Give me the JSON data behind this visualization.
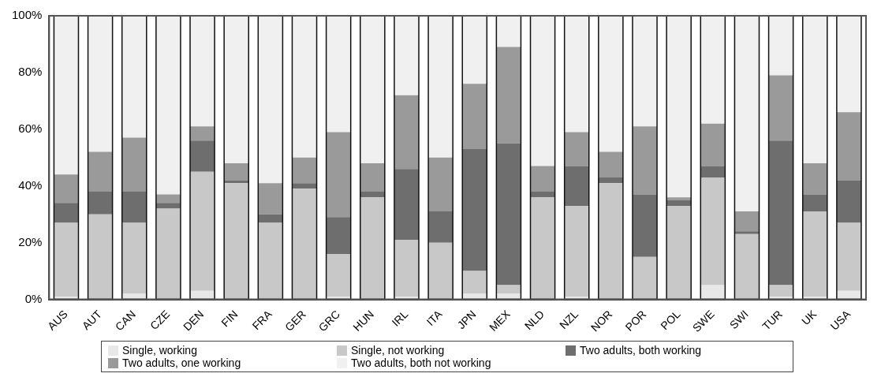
{
  "chart_data": {
    "type": "bar",
    "stacked": true,
    "categories": [
      "AUS",
      "AUT",
      "CAN",
      "CZE",
      "DEN",
      "FIN",
      "FRA",
      "GER",
      "GRC",
      "HUN",
      "IRL",
      "ITA",
      "JPN",
      "MEX",
      "NLD",
      "NZL",
      "NOR",
      "POR",
      "POL",
      "SWE",
      "SWI",
      "TUR",
      "UK",
      "USA"
    ],
    "series": [
      {
        "name": "Single, working",
        "color": "#e8e8e8",
        "values": [
          1,
          0,
          2,
          0,
          3,
          0,
          0,
          0,
          1,
          0,
          1,
          0,
          2,
          2,
          0,
          1,
          0,
          0,
          0,
          5,
          0,
          1,
          1,
          3
        ]
      },
      {
        "name": "Single, not working",
        "color": "#c8c8c8",
        "values": [
          26,
          30,
          25,
          32,
          42,
          41,
          27,
          39,
          15,
          36,
          20,
          20,
          8,
          3,
          36,
          32,
          41,
          15,
          33,
          38,
          23,
          4,
          30,
          24
        ]
      },
      {
        "name": "Two adults, both working",
        "color": "#6e6e6e",
        "values": [
          7,
          8,
          11,
          2,
          11,
          1,
          3,
          2,
          13,
          2,
          25,
          11,
          43,
          50,
          2,
          14,
          2,
          22,
          2,
          4,
          1,
          51,
          6,
          15
        ]
      },
      {
        "name": "Two adults, one working",
        "color": "#9a9a9a",
        "values": [
          10,
          14,
          19,
          3,
          5,
          6,
          11,
          9,
          30,
          10,
          26,
          19,
          23,
          34,
          9,
          12,
          9,
          24,
          1,
          15,
          7,
          23,
          11,
          24
        ]
      },
      {
        "name": "Two adults, both not working",
        "color": "#f0f0f0",
        "values": [
          56,
          48,
          43,
          63,
          39,
          52,
          59,
          50,
          41,
          52,
          28,
          50,
          24,
          11,
          53,
          41,
          48,
          39,
          64,
          38,
          69,
          21,
          52,
          34
        ]
      }
    ],
    "ylim": [
      0,
      100
    ],
    "yticks": [
      {
        "value": 0,
        "label": "0%"
      },
      {
        "value": 20,
        "label": "20%"
      },
      {
        "value": 40,
        "label": "40%"
      },
      {
        "value": 60,
        "label": "60%"
      },
      {
        "value": 80,
        "label": "80%"
      },
      {
        "value": 100,
        "label": "100%"
      }
    ],
    "grid": false,
    "legend": "bottom"
  }
}
